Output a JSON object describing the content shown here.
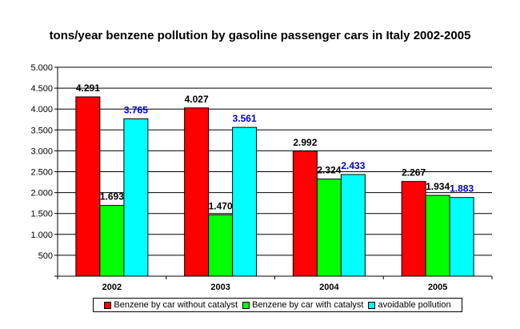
{
  "chart_data": {
    "type": "bar",
    "title": "tons/year benzene pollution by gasoline passenger cars in Italy 2002-2005",
    "categories": [
      "2002",
      "2003",
      "2004",
      "2005"
    ],
    "ylim": [
      0,
      5000
    ],
    "yticks": [
      0,
      500,
      1000,
      1500,
      2000,
      2500,
      3000,
      3500,
      4000,
      4500,
      5000
    ],
    "ytick_labels": [
      "",
      "500",
      "1.000",
      "1.500",
      "2.000",
      "2.500",
      "3.000",
      "3.500",
      "4.000",
      "4.500",
      "5.000"
    ],
    "grid": true,
    "legend_position": "bottom",
    "series": [
      {
        "name": "Benzene by car without catalyst",
        "color": "#ff0000",
        "label_color": "#000000",
        "values": [
          4291,
          4027,
          2992,
          2267
        ],
        "labels": [
          "4.291",
          "4.027",
          "2.992",
          "2.267"
        ]
      },
      {
        "name": "Benzene by car with catalyst",
        "color": "#00ff00",
        "label_color": "#000000",
        "values": [
          1693,
          1470,
          2324,
          1934
        ],
        "labels": [
          "1.693",
          "1.470",
          "2.324",
          "1.934"
        ]
      },
      {
        "name": "avoidable pollution",
        "color": "#00ffff",
        "label_color": "#0000cc",
        "values": [
          3765,
          3561,
          2433,
          1883
        ],
        "labels": [
          "3.765",
          "3.561",
          "2.433",
          "1.883"
        ]
      }
    ]
  }
}
